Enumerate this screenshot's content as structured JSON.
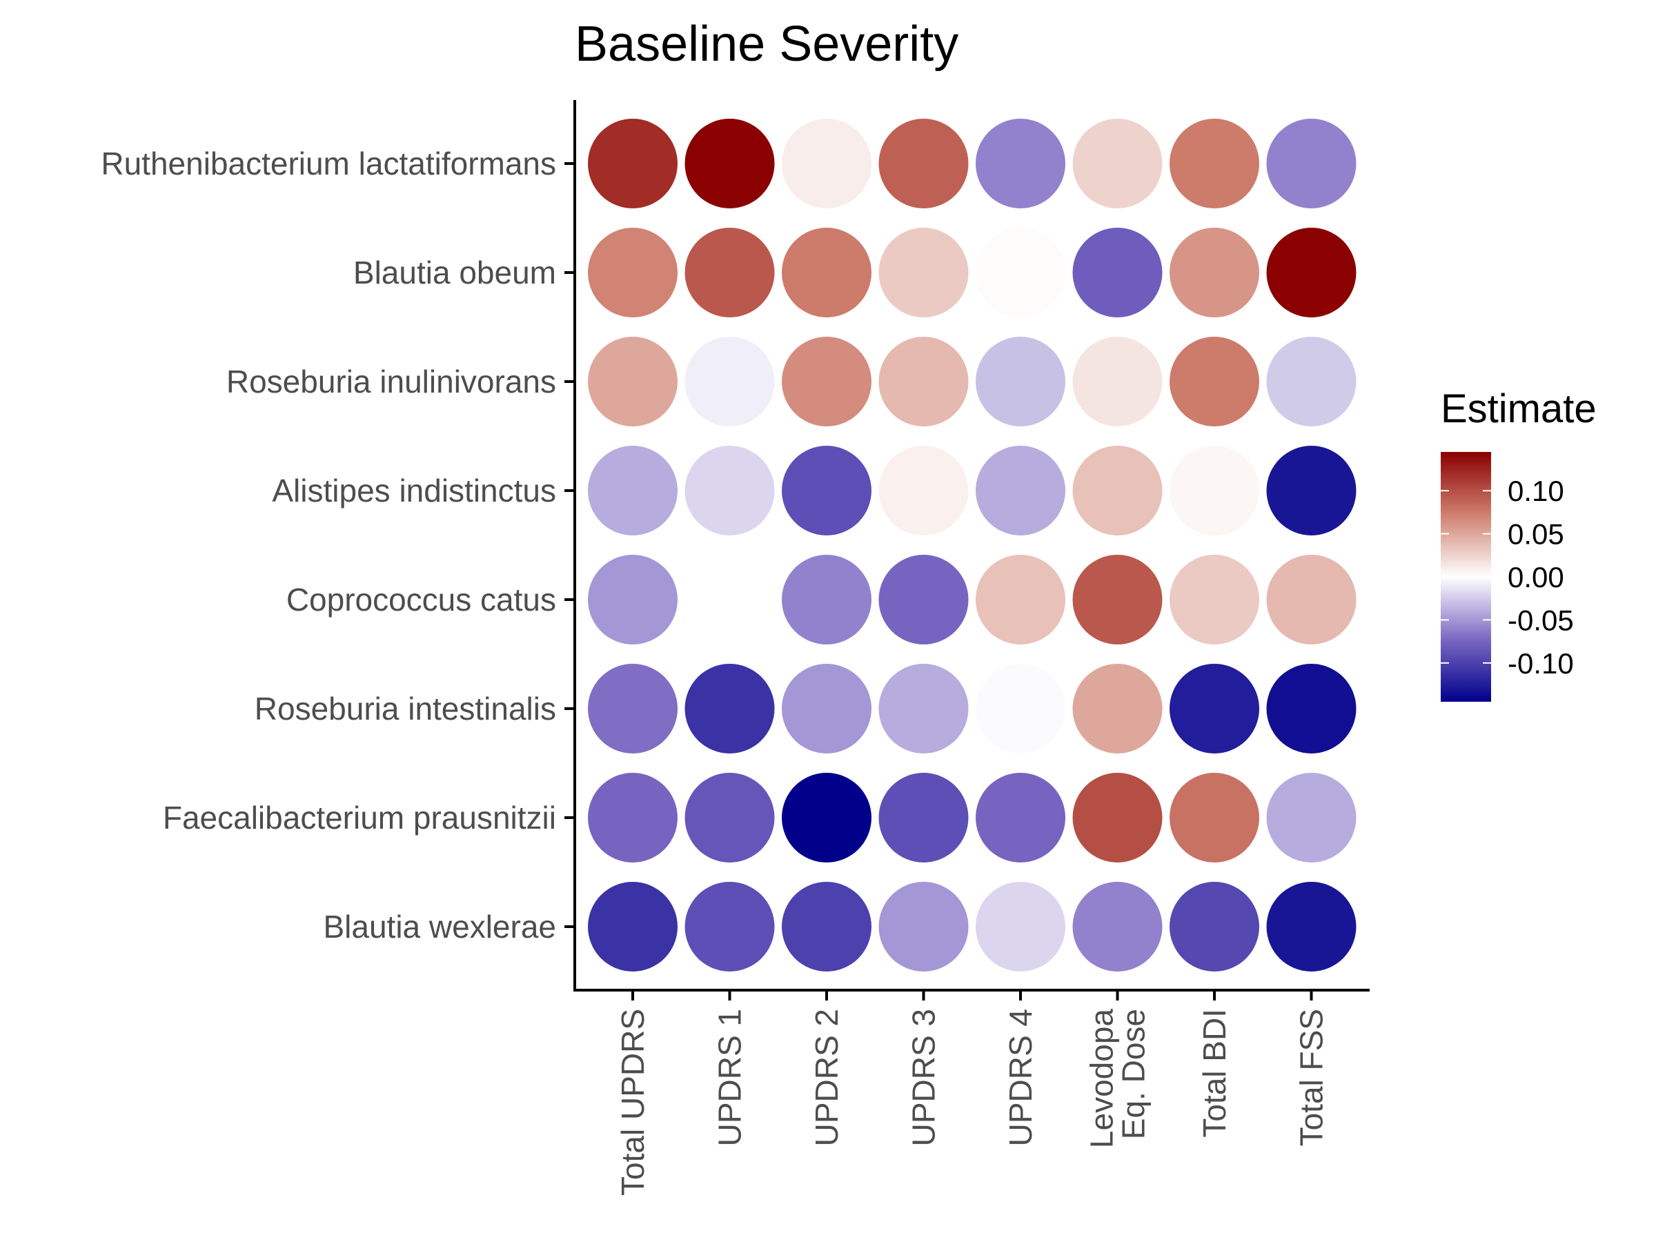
{
  "chart_data": {
    "type": "heatmap",
    "title": "Baseline Severity",
    "xlabel": "",
    "ylabel": "",
    "x_categories": [
      "Total UPDRS",
      "UPDRS 1",
      "UPDRS 2",
      "UPDRS 3",
      "UPDRS 4",
      "Levodopa\nEq. Dose",
      "Total BDI",
      "Total FSS"
    ],
    "y_categories": [
      "Ruthenibacterium lactatiformans",
      "Blautia obeum",
      "Roseburia inulinivorans",
      "Alistipes indistinctus",
      "Coprococcus catus",
      "Roseburia intestinalis",
      "Faecalibacterium prausnitzii",
      "Blautia wexlerae"
    ],
    "values": [
      [
        0.12,
        0.145,
        0.01,
        0.09,
        -0.06,
        0.025,
        0.075,
        -0.06
      ],
      [
        0.07,
        0.095,
        0.075,
        0.03,
        0.002,
        -0.08,
        0.06,
        0.145
      ],
      [
        0.05,
        -0.008,
        0.065,
        0.04,
        -0.03,
        0.015,
        0.075,
        -0.025
      ],
      [
        -0.04,
        -0.02,
        -0.09,
        0.008,
        -0.04,
        0.035,
        0.005,
        -0.13
      ],
      [
        -0.05,
        0.0,
        -0.06,
        -0.075,
        0.035,
        0.095,
        0.03,
        0.04
      ],
      [
        -0.07,
        -0.11,
        -0.05,
        -0.04,
        -0.002,
        0.05,
        -0.125,
        -0.135
      ],
      [
        -0.075,
        -0.085,
        -0.16,
        -0.09,
        -0.075,
        0.1,
        0.08,
        -0.04
      ],
      [
        -0.11,
        -0.09,
        -0.1,
        -0.05,
        -0.02,
        -0.06,
        -0.095,
        -0.13
      ]
    ],
    "legend": {
      "title": "Estimate",
      "position": "right",
      "ticks": [
        0.1,
        0.05,
        0.0,
        -0.05,
        -0.1
      ],
      "tick_labels": [
        "0.10",
        "0.05",
        "0.00",
        "-0.05",
        "-0.10"
      ],
      "range": [
        -0.145,
        0.145
      ],
      "low_color": "#00008b",
      "mid_color": "#ffffff",
      "high_color": "#8b0000"
    },
    "grid": false
  }
}
